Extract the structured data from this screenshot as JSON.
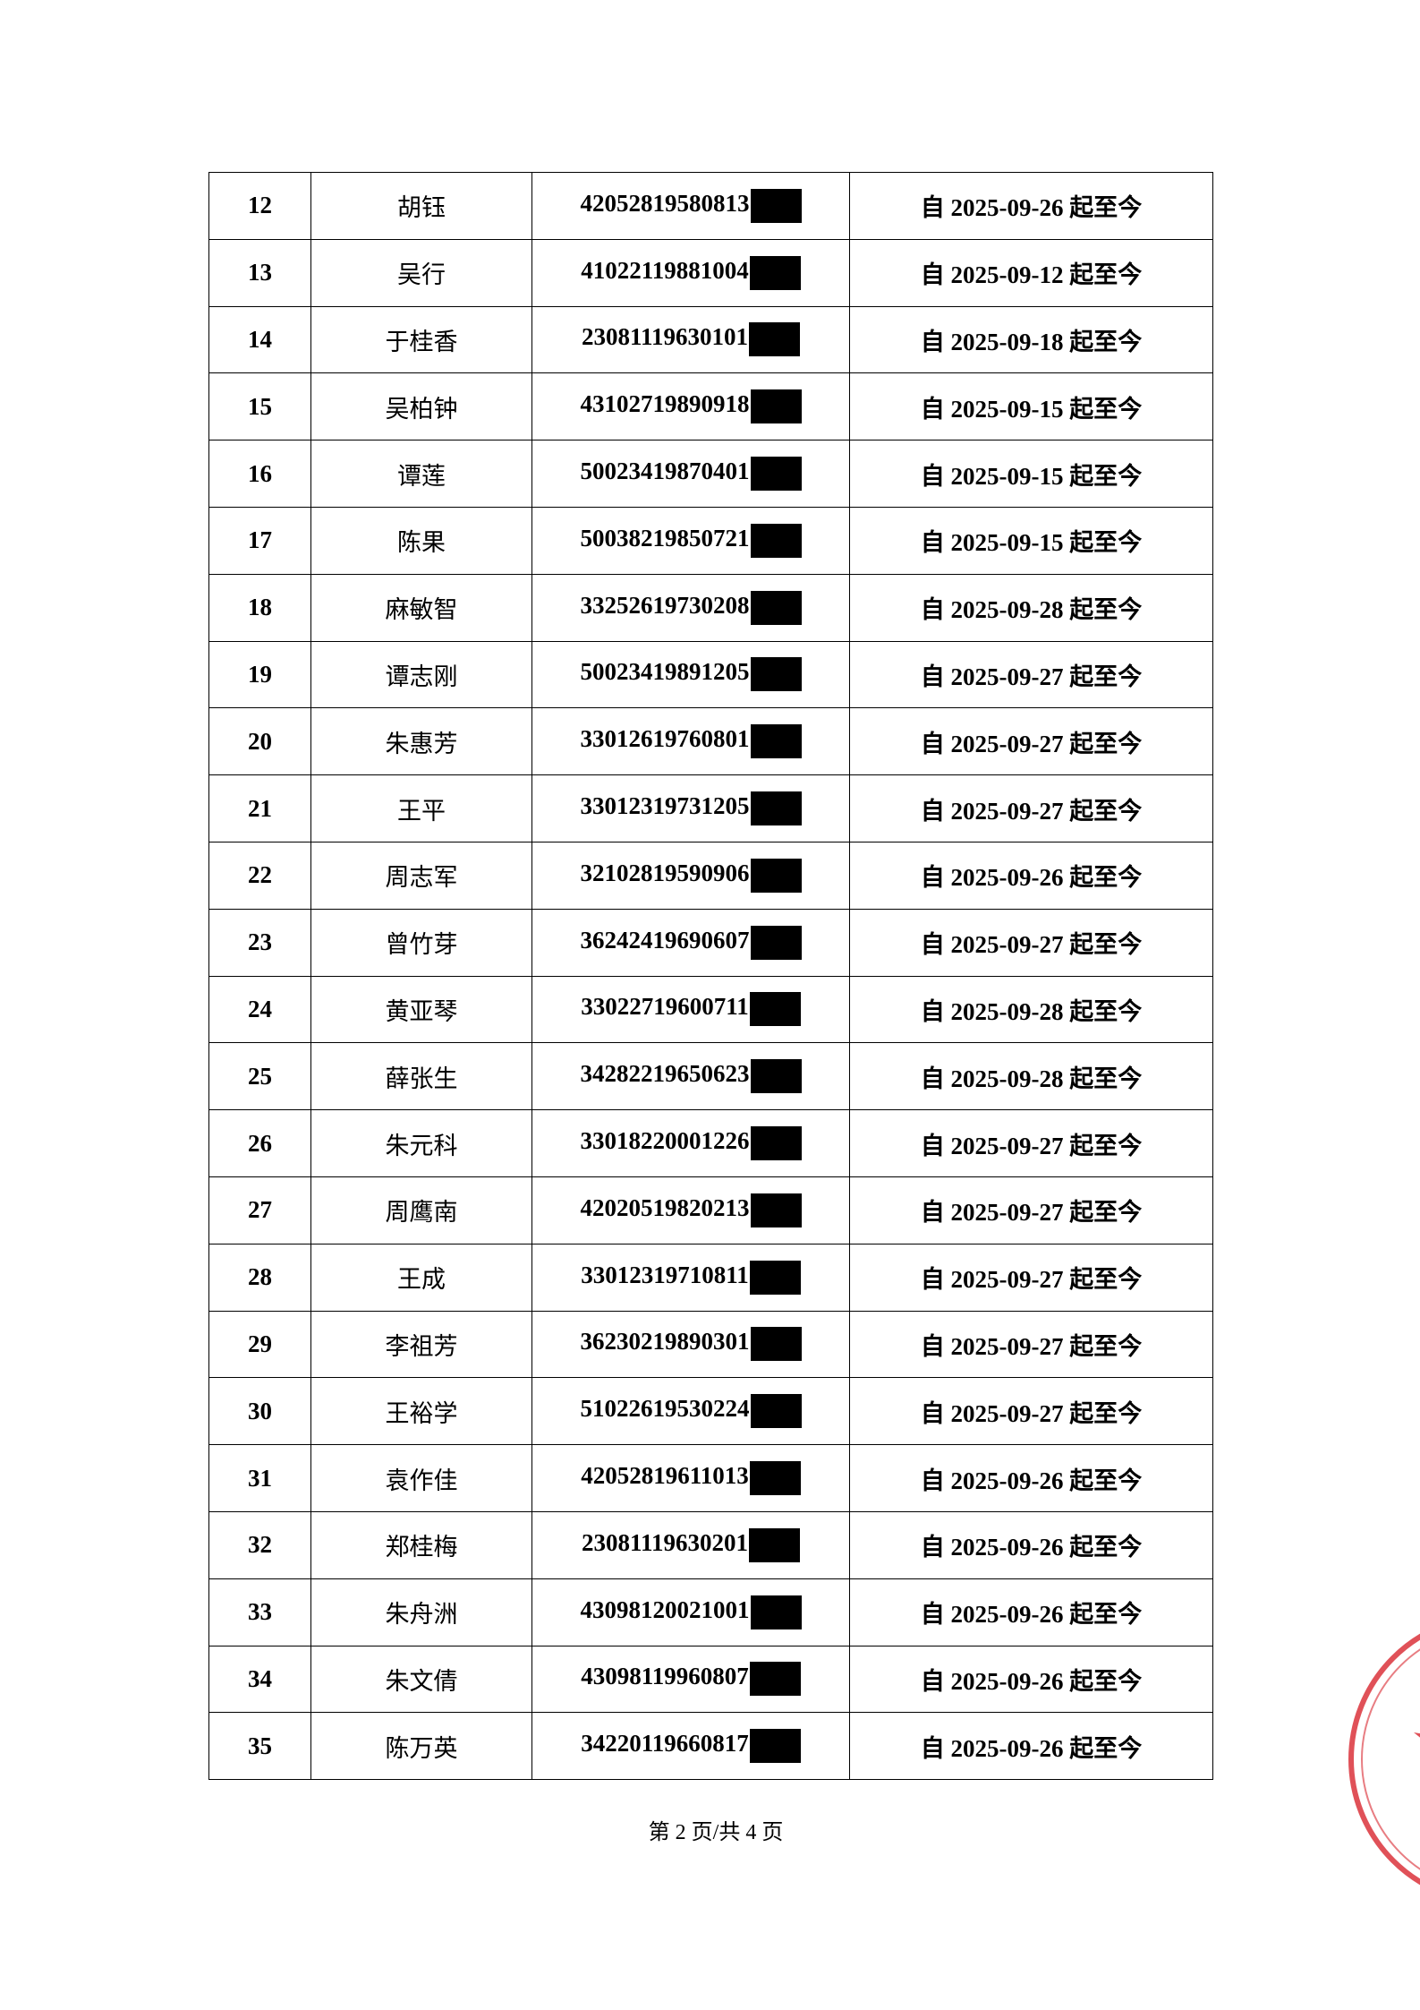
{
  "table": {
    "rows": [
      [
        "12",
        "胡钰",
        "42052819580813",
        "自 2025-09-26 起至今"
      ],
      [
        "13",
        "吴行",
        "41022119881004",
        "自 2025-09-12 起至今"
      ],
      [
        "14",
        "于桂香",
        "23081119630101",
        "自 2025-09-18 起至今"
      ],
      [
        "15",
        "吴柏钟",
        "43102719890918",
        "自 2025-09-15 起至今"
      ],
      [
        "16",
        "谭莲",
        "50023419870401",
        "自 2025-09-15 起至今"
      ],
      [
        "17",
        "陈果",
        "50038219850721",
        "自 2025-09-15 起至今"
      ],
      [
        "18",
        "麻敏智",
        "33252619730208",
        "自 2025-09-28 起至今"
      ],
      [
        "19",
        "谭志刚",
        "50023419891205",
        "自 2025-09-27 起至今"
      ],
      [
        "20",
        "朱惠芳",
        "33012619760801",
        "自 2025-09-27 起至今"
      ],
      [
        "21",
        "王平",
        "33012319731205",
        "自 2025-09-27 起至今"
      ],
      [
        "22",
        "周志军",
        "32102819590906",
        "自 2025-09-26 起至今"
      ],
      [
        "23",
        "曾竹芽",
        "36242419690607",
        "自 2025-09-27 起至今"
      ],
      [
        "24",
        "黄亚琴",
        "33022719600711",
        "自 2025-09-28 起至今"
      ],
      [
        "25",
        "薛张生",
        "34282219650623",
        "自 2025-09-28 起至今"
      ],
      [
        "26",
        "朱元科",
        "33018220001226",
        "自 2025-09-27 起至今"
      ],
      [
        "27",
        "周鹰南",
        "42020519820213",
        "自 2025-09-27 起至今"
      ],
      [
        "28",
        "王成",
        "33012319710811",
        "自 2025-09-27 起至今"
      ],
      [
        "29",
        "李祖芳",
        "36230219890301",
        "自 2025-09-27 起至今"
      ],
      [
        "30",
        "王裕学",
        "51022619530224",
        "自 2025-09-27 起至今"
      ],
      [
        "31",
        "袁作佳",
        "42052819611013",
        "自 2025-09-26 起至今"
      ],
      [
        "32",
        "郑桂梅",
        "23081119630201",
        "自 2025-09-26 起至今"
      ],
      [
        "33",
        "朱舟洲",
        "43098120021001",
        "自 2025-09-26 起至今"
      ],
      [
        "34",
        "朱文倩",
        "43098119960807",
        "自 2025-09-26 起至今"
      ],
      [
        "35",
        "陈万英",
        "34220119660817",
        "自 2025-09-26 起至今"
      ]
    ]
  },
  "footer": "第 2 页/共 4 页"
}
